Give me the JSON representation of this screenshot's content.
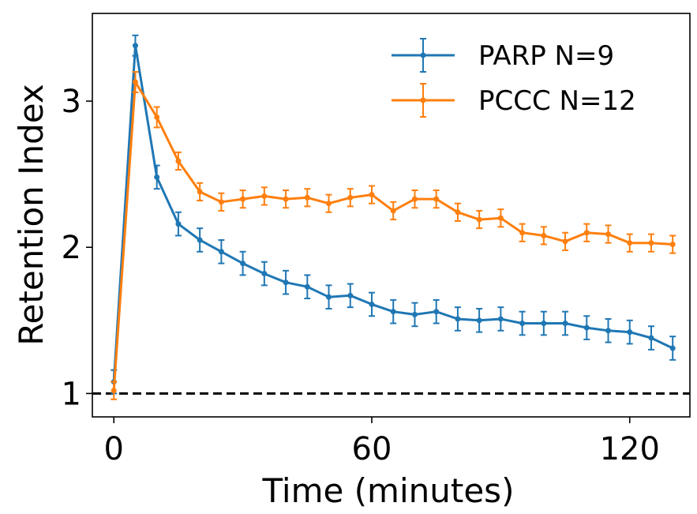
{
  "chart_data": {
    "type": "line",
    "xlabel": "Time (minutes)",
    "ylabel": "Retention Index",
    "xlim": [
      -5,
      134
    ],
    "ylim": [
      0.84,
      3.6
    ],
    "xticks": [
      0,
      60,
      120
    ],
    "yticks": [
      1,
      2,
      3
    ],
    "reference_line": {
      "y": 1,
      "style": "dashed",
      "color": "#000000"
    },
    "legend_position": "top-right",
    "grid": false,
    "series": [
      {
        "name": "PARP N=9",
        "color": "#1f77b4",
        "x": [
          0,
          5,
          10,
          15,
          20,
          25,
          30,
          35,
          40,
          45,
          50,
          55,
          60,
          65,
          70,
          75,
          80,
          85,
          90,
          95,
          100,
          105,
          110,
          115,
          120,
          125,
          130
        ],
        "y": [
          1.08,
          3.38,
          2.48,
          2.16,
          2.05,
          1.97,
          1.89,
          1.82,
          1.76,
          1.73,
          1.66,
          1.67,
          1.61,
          1.56,
          1.54,
          1.56,
          1.51,
          1.5,
          1.51,
          1.48,
          1.48,
          1.48,
          1.45,
          1.43,
          1.42,
          1.38,
          1.31
        ],
        "err": [
          0.08,
          0.07,
          0.08,
          0.08,
          0.08,
          0.08,
          0.08,
          0.08,
          0.08,
          0.08,
          0.08,
          0.08,
          0.08,
          0.08,
          0.08,
          0.08,
          0.08,
          0.08,
          0.08,
          0.08,
          0.08,
          0.08,
          0.08,
          0.08,
          0.08,
          0.08,
          0.08
        ]
      },
      {
        "name": "PCCC N=12",
        "color": "#ff7f0e",
        "x": [
          0,
          5,
          10,
          15,
          20,
          25,
          30,
          35,
          40,
          45,
          50,
          55,
          60,
          65,
          70,
          75,
          80,
          85,
          90,
          95,
          100,
          105,
          110,
          115,
          120,
          125,
          130
        ],
        "y": [
          1.02,
          3.13,
          2.89,
          2.59,
          2.38,
          2.31,
          2.33,
          2.35,
          2.33,
          2.34,
          2.3,
          2.34,
          2.36,
          2.25,
          2.33,
          2.33,
          2.24,
          2.19,
          2.2,
          2.1,
          2.08,
          2.04,
          2.1,
          2.09,
          2.03,
          2.03,
          2.02
        ],
        "err": [
          0.06,
          0.07,
          0.07,
          0.06,
          0.06,
          0.06,
          0.06,
          0.06,
          0.06,
          0.06,
          0.06,
          0.06,
          0.06,
          0.06,
          0.06,
          0.06,
          0.06,
          0.06,
          0.06,
          0.06,
          0.06,
          0.06,
          0.06,
          0.06,
          0.06,
          0.06,
          0.06
        ]
      }
    ]
  }
}
